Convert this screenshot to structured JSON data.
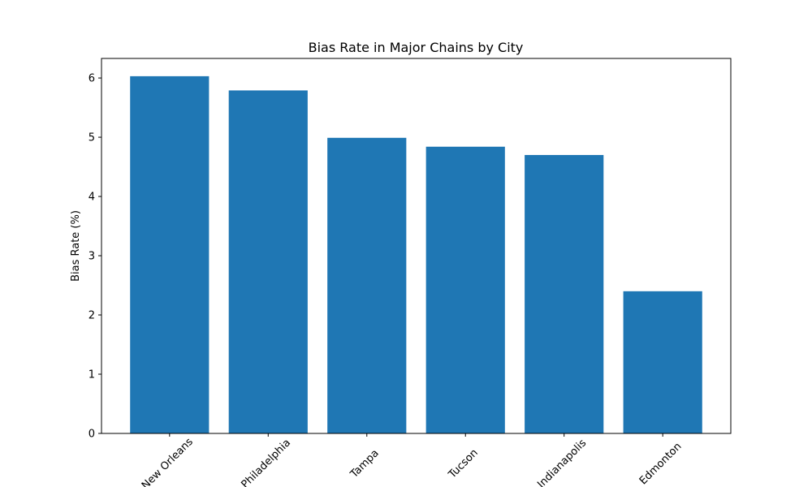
{
  "chart_data": {
    "type": "bar",
    "title": "Bias Rate in Major Chains by City",
    "xlabel": "",
    "ylabel": "Bias Rate (%)",
    "categories": [
      "New Orleans",
      "Philadelphia",
      "Tampa",
      "Tucson",
      "Indianapolis",
      "Edmonton"
    ],
    "values": [
      6.03,
      5.79,
      4.99,
      4.84,
      4.7,
      2.4
    ],
    "ylim": [
      0,
      6.33
    ],
    "yticks": [
      0,
      1,
      2,
      3,
      4,
      5,
      6
    ],
    "bar_color": "#1f77b4",
    "grid": false,
    "legend": "none"
  }
}
